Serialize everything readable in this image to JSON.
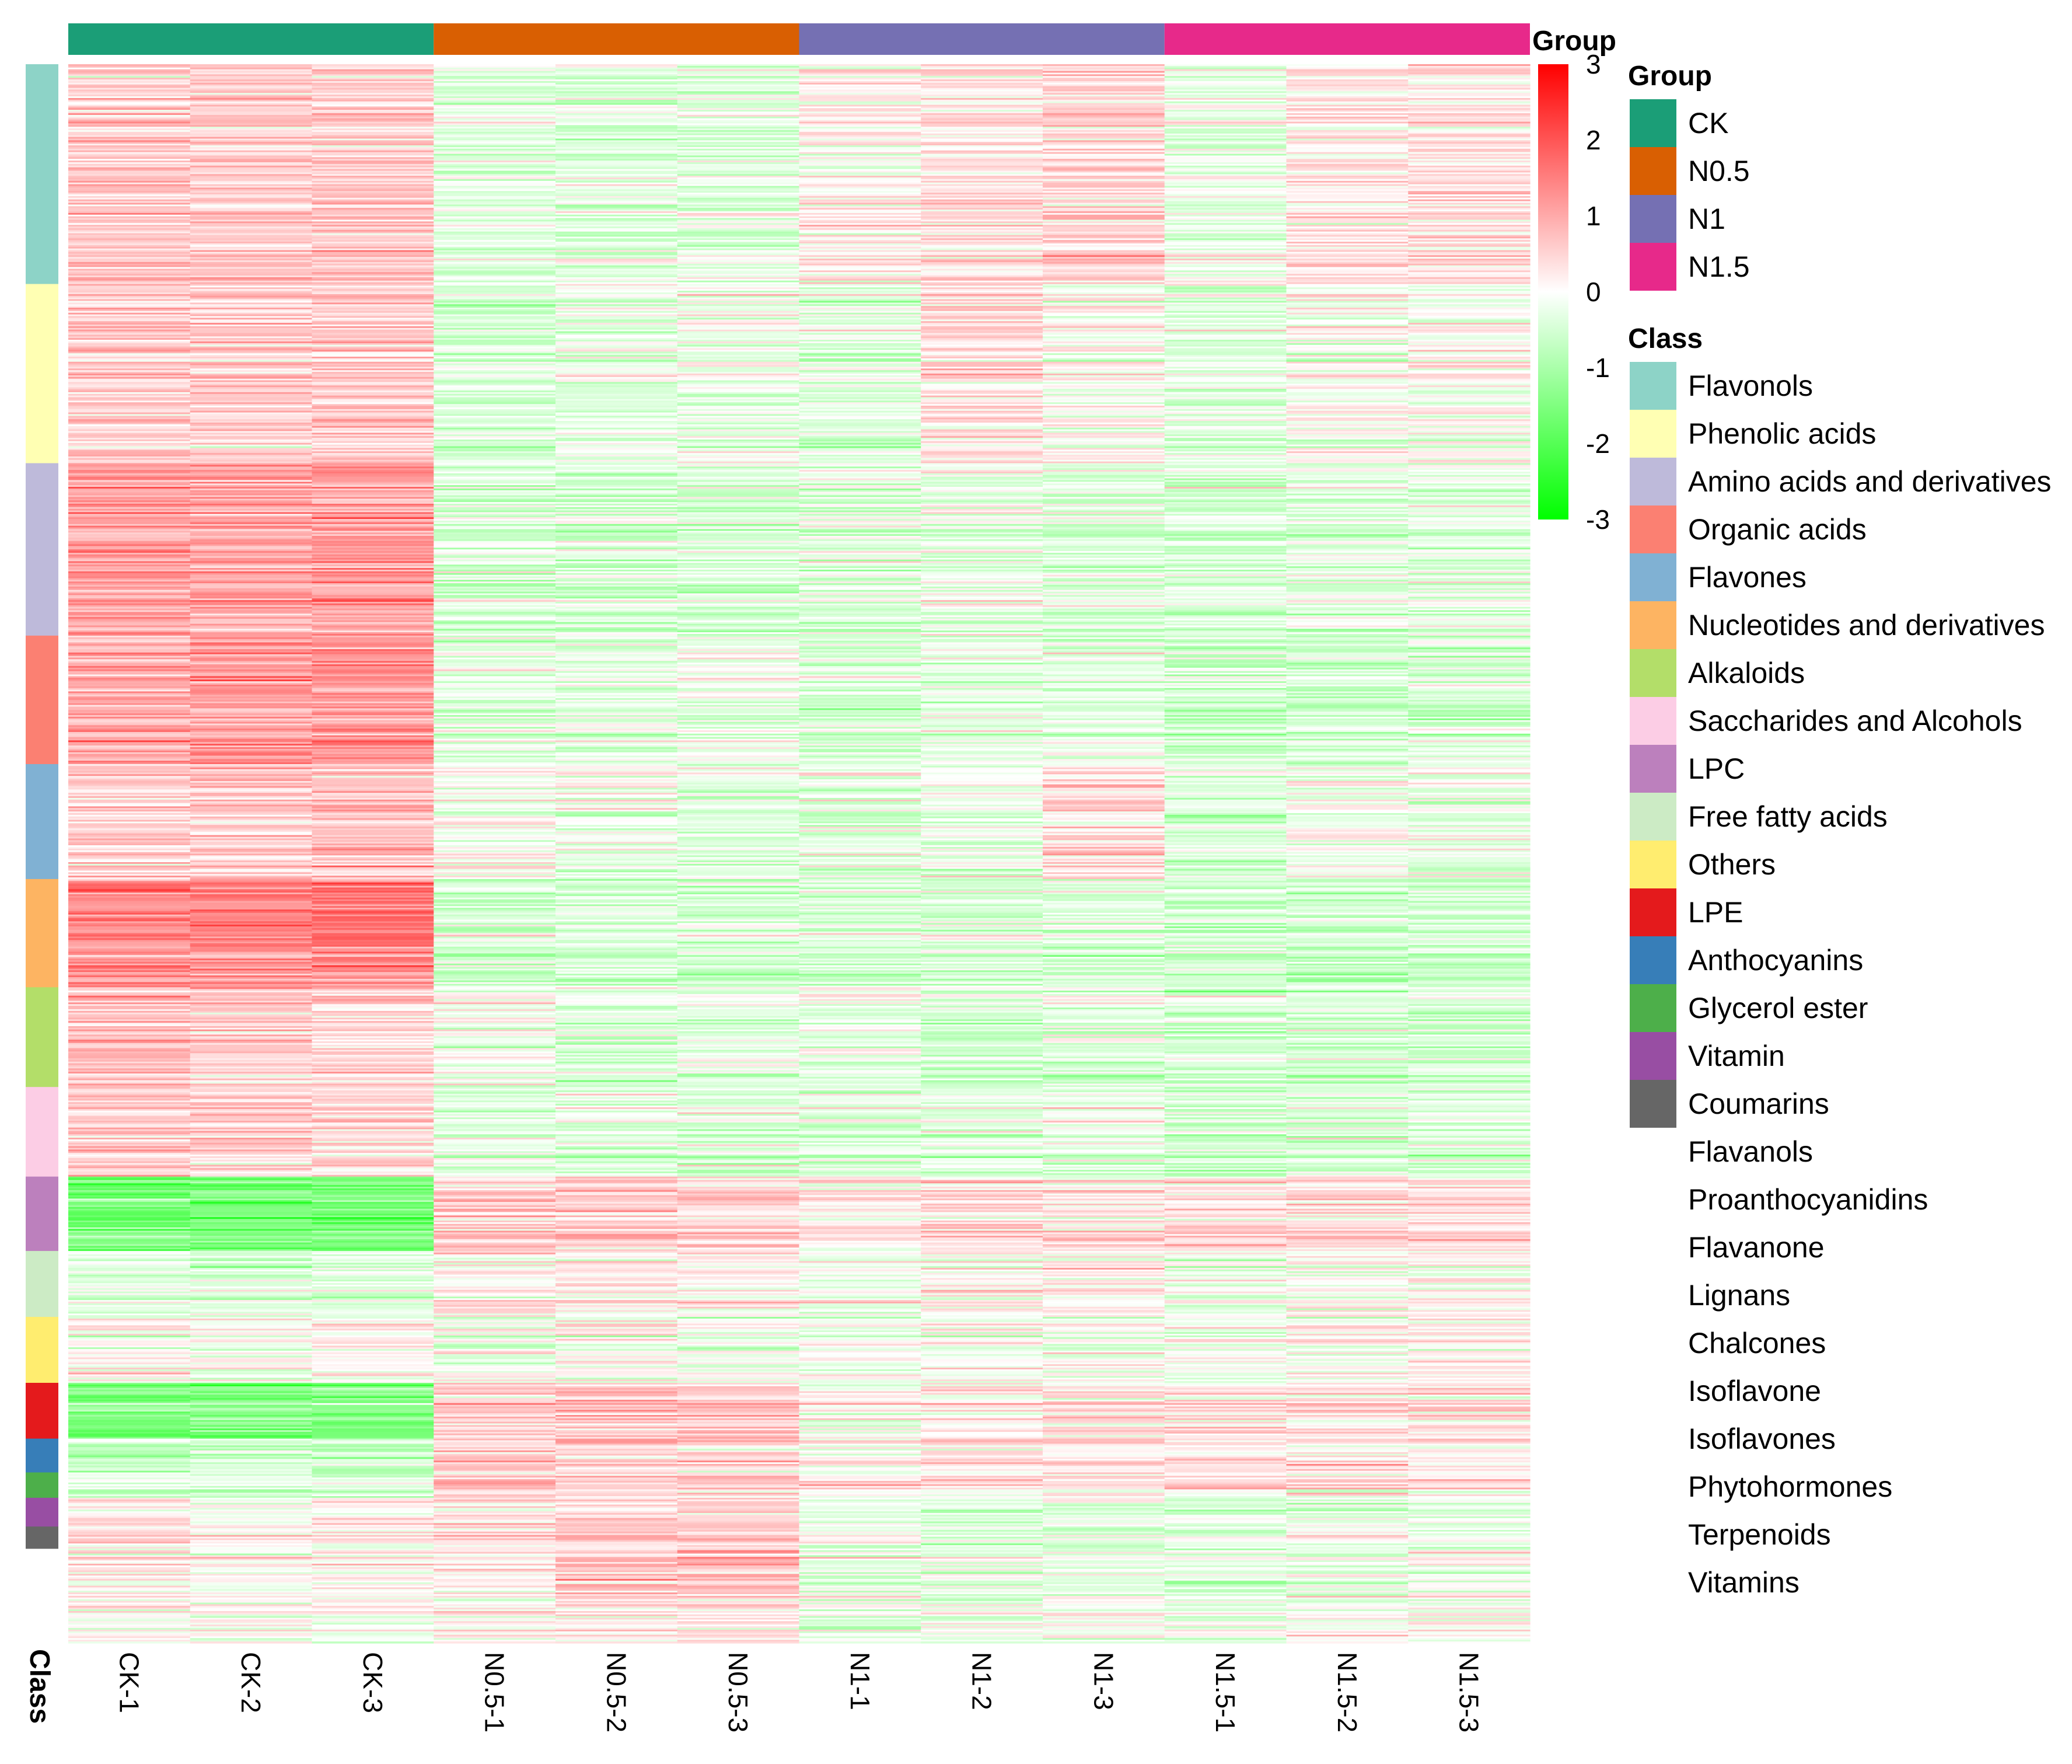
{
  "chart_data": {
    "type": "heatmap",
    "title": "",
    "column_annotation_title": "Group",
    "row_annotation_title": "Class",
    "columns": [
      "CK-1",
      "CK-2",
      "CK-3",
      "N0.5-1",
      "N0.5-2",
      "N0.5-3",
      "N1-1",
      "N1-2",
      "N1-3",
      "N1.5-1",
      "N1.5-2",
      "N1.5-3"
    ],
    "column_groups": [
      "CK",
      "CK",
      "CK",
      "N0.5",
      "N0.5",
      "N0.5",
      "N1",
      "N1",
      "N1",
      "N1.5",
      "N1.5",
      "N1.5"
    ],
    "groups": [
      {
        "name": "CK",
        "color": "#1B9E77"
      },
      {
        "name": "N0.5",
        "color": "#D95F02"
      },
      {
        "name": "N1",
        "color": "#7570B3"
      },
      {
        "name": "N1.5",
        "color": "#E7298A"
      }
    ],
    "classes": [
      {
        "name": "Flavonols",
        "color": "#8DD3C7"
      },
      {
        "name": "Phenolic acids",
        "color": "#FFFFB3"
      },
      {
        "name": "Amino acids and derivatives",
        "color": "#BEBADA"
      },
      {
        "name": "Organic acids",
        "color": "#FB8072"
      },
      {
        "name": "Flavones",
        "color": "#80B1D3"
      },
      {
        "name": "Nucleotides and derivatives",
        "color": "#FDB462"
      },
      {
        "name": "Alkaloids",
        "color": "#B3DE69"
      },
      {
        "name": "Saccharides and Alcohols",
        "color": "#FCCDE5"
      },
      {
        "name": "LPC",
        "color": "#BC80BD"
      },
      {
        "name": "Free fatty acids",
        "color": "#CCEBC5"
      },
      {
        "name": "Others",
        "color": "#FFED6F"
      },
      {
        "name": "LPE",
        "color": "#E41A1C"
      },
      {
        "name": "Anthocyanins",
        "color": "#377EB8"
      },
      {
        "name": "Glycerol ester",
        "color": "#4DAF4A"
      },
      {
        "name": "Vitamin",
        "color": "#984EA3"
      },
      {
        "name": "Coumarins",
        "color": "#666666"
      },
      {
        "name": "Flavanols",
        "color": ""
      },
      {
        "name": "Proanthocyanidins",
        "color": ""
      },
      {
        "name": "Flavanone",
        "color": ""
      },
      {
        "name": "Lignans",
        "color": ""
      },
      {
        "name": "Chalcones",
        "color": ""
      },
      {
        "name": "Isoflavone",
        "color": ""
      },
      {
        "name": "Isoflavones",
        "color": ""
      },
      {
        "name": "Phytohormones",
        "color": ""
      },
      {
        "name": "Terpenoids",
        "color": ""
      },
      {
        "name": "Vitamins",
        "color": ""
      }
    ],
    "row_blocks": [
      {
        "class": "Flavonols",
        "rows": 130,
        "profile": [
          0.6,
          0.6,
          0.6,
          -0.3,
          -0.3,
          -0.3,
          0.1,
          0.3,
          0.5,
          -0.2,
          0.3,
          0.3
        ]
      },
      {
        "class": "Phenolic acids",
        "rows": 106,
        "profile": [
          0.6,
          0.6,
          0.6,
          -0.4,
          -0.2,
          -0.2,
          -0.3,
          0.3,
          0.0,
          -0.3,
          0.0,
          0.0
        ]
      },
      {
        "class": "Amino acids and derivatives",
        "rows": 102,
        "profile": [
          1.2,
          1.1,
          1.2,
          -0.4,
          -0.4,
          -0.4,
          -0.3,
          -0.2,
          -0.3,
          -0.4,
          -0.3,
          -0.3
        ]
      },
      {
        "class": "Organic acids",
        "rows": 76,
        "profile": [
          1.0,
          1.2,
          1.2,
          -0.3,
          -0.2,
          -0.2,
          -0.4,
          -0.3,
          -0.3,
          -0.5,
          -0.5,
          -0.4
        ]
      },
      {
        "class": "Flavones",
        "rows": 68,
        "profile": [
          0.5,
          0.6,
          0.8,
          0.0,
          -0.1,
          -0.3,
          -0.3,
          -0.2,
          0.4,
          -0.4,
          -0.1,
          -0.2
        ]
      },
      {
        "class": "Nucleotides and derivatives",
        "rows": 64,
        "profile": [
          1.3,
          1.4,
          1.5,
          -0.5,
          -0.4,
          -0.5,
          -0.4,
          -0.4,
          -0.4,
          -0.5,
          -0.6,
          -0.5
        ]
      },
      {
        "class": "Alkaloids",
        "rows": 59,
        "profile": [
          0.8,
          0.6,
          0.5,
          0.0,
          -0.3,
          -0.3,
          -0.2,
          -0.4,
          -0.3,
          -0.4,
          -0.4,
          -0.4
        ]
      },
      {
        "class": "Saccharides and Alcohols",
        "rows": 53,
        "profile": [
          0.6,
          0.5,
          0.4,
          -0.3,
          -0.3,
          -0.3,
          -0.4,
          -0.3,
          -0.3,
          -0.5,
          -0.4,
          -0.4
        ]
      },
      {
        "class": "LPC",
        "rows": 44,
        "profile": [
          -1.6,
          -1.6,
          -1.6,
          0.6,
          0.6,
          0.6,
          0.2,
          0.4,
          0.3,
          0.4,
          0.4,
          0.4
        ]
      },
      {
        "class": "Free fatty acids",
        "rows": 39,
        "profile": [
          -0.3,
          -0.3,
          -0.3,
          0.2,
          0.2,
          0.2,
          0.0,
          0.1,
          0.1,
          -0.1,
          0.0,
          0.0
        ]
      },
      {
        "class": "Others",
        "rows": 39,
        "profile": [
          0.2,
          0.0,
          0.1,
          -0.1,
          0.0,
          -0.1,
          -0.1,
          0.1,
          0.0,
          -0.1,
          0.0,
          0.2
        ]
      },
      {
        "class": "LPE",
        "rows": 33,
        "profile": [
          -1.4,
          -1.4,
          -1.4,
          0.7,
          0.8,
          0.7,
          0.1,
          0.2,
          0.4,
          0.4,
          0.4,
          0.4
        ]
      },
      {
        "class": "Anthocyanins",
        "rows": 20,
        "profile": [
          -0.8,
          -0.6,
          -0.7,
          0.5,
          0.6,
          0.4,
          0.0,
          0.2,
          0.3,
          0.2,
          0.3,
          0.2
        ]
      },
      {
        "class": "Glycerol ester",
        "rows": 15,
        "profile": [
          -0.6,
          -0.6,
          -0.6,
          0.5,
          0.5,
          0.4,
          0.0,
          0.1,
          0.1,
          0.2,
          0.2,
          0.2
        ]
      },
      {
        "class": "Vitamin",
        "rows": 17,
        "profile": [
          0.2,
          0.1,
          0.1,
          0.3,
          0.4,
          0.5,
          -0.3,
          -0.2,
          -0.2,
          -0.3,
          -0.2,
          -0.2
        ]
      },
      {
        "class": "Coumarins",
        "rows": 13,
        "profile": [
          0.2,
          0.1,
          0.0,
          0.3,
          0.5,
          0.6,
          -0.3,
          -0.3,
          -0.3,
          -0.3,
          -0.2,
          -0.2
        ]
      },
      {
        "class": "Flavanols",
        "rows": 10,
        "profile": [
          0.1,
          0.0,
          0.1,
          0.3,
          0.6,
          0.8,
          -0.3,
          -0.2,
          -0.2,
          -0.3,
          -0.2,
          -0.1
        ]
      },
      {
        "class": "Proanthocyanidins",
        "rows": 8,
        "profile": [
          0.1,
          0.0,
          0.1,
          0.3,
          0.8,
          0.7,
          -0.3,
          -0.2,
          -0.2,
          -0.3,
          -0.2,
          -0.1
        ]
      },
      {
        "class": "Flavanone",
        "rows": 8,
        "profile": [
          0.1,
          0.1,
          0.0,
          0.3,
          0.7,
          0.6,
          -0.3,
          -0.2,
          -0.2,
          -0.3,
          -0.1,
          -0.1
        ]
      },
      {
        "class": "Lignans",
        "rows": 6,
        "profile": [
          0.2,
          0.1,
          0.1,
          0.2,
          0.6,
          0.5,
          -0.3,
          -0.2,
          -0.1,
          -0.2,
          -0.1,
          0.0
        ]
      },
      {
        "class": "Chalcones",
        "rows": 5,
        "profile": [
          0.2,
          0.1,
          0.1,
          0.2,
          0.4,
          0.4,
          -0.2,
          -0.2,
          -0.1,
          -0.2,
          0.0,
          0.0
        ]
      },
      {
        "class": "Isoflavone",
        "rows": 5,
        "profile": [
          0.1,
          0.1,
          0.0,
          0.2,
          0.3,
          0.3,
          -0.2,
          -0.2,
          -0.1,
          -0.2,
          0.0,
          0.0
        ]
      },
      {
        "class": "Isoflavones",
        "rows": 4,
        "profile": [
          0.1,
          0.1,
          0.0,
          0.2,
          0.3,
          0.3,
          -0.2,
          -0.2,
          -0.1,
          -0.2,
          0.0,
          0.0
        ]
      },
      {
        "class": "Phytohormones",
        "rows": 4,
        "profile": [
          0.1,
          0.0,
          0.0,
          0.2,
          0.3,
          0.3,
          -0.2,
          -0.2,
          -0.1,
          -0.2,
          0.0,
          0.0
        ]
      },
      {
        "class": "Terpenoids",
        "rows": 3,
        "profile": [
          0.1,
          0.0,
          0.0,
          0.2,
          0.3,
          0.3,
          -0.2,
          -0.2,
          -0.1,
          -0.2,
          0.0,
          0.0
        ]
      },
      {
        "class": "Vitamins",
        "rows": 3,
        "profile": [
          0.1,
          0.0,
          0.0,
          0.2,
          0.3,
          0.3,
          -0.2,
          -0.2,
          -0.1,
          -0.2,
          0.0,
          0.0
        ]
      }
    ],
    "value_range": [
      -3,
      3
    ],
    "colorbar_ticks": [
      3,
      2,
      1,
      0,
      -1,
      -2,
      -3
    ],
    "color_scale": {
      "low": "#00FF00",
      "mid": "#FFFFFF",
      "high": "#FF0000"
    },
    "legend_position": "right"
  }
}
